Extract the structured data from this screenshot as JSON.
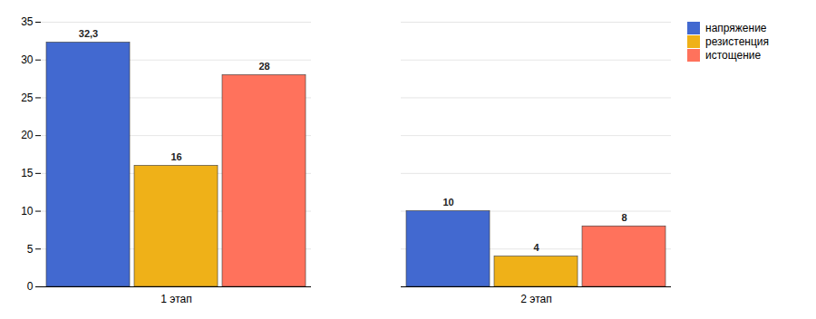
{
  "chart_data": {
    "type": "bar",
    "categories": [
      "1 этап",
      "2 этап"
    ],
    "series": [
      {
        "name": "напряжение",
        "values": [
          32.3,
          10
        ],
        "value_labels": [
          "32,3",
          "10"
        ]
      },
      {
        "name": "резистенция",
        "values": [
          16,
          4
        ],
        "value_labels": [
          "16",
          "4"
        ]
      },
      {
        "name": "истощение",
        "values": [
          28,
          8
        ],
        "value_labels": [
          "28",
          "8"
        ]
      }
    ],
    "ylim": [
      0,
      35
    ],
    "yticks": [
      0,
      5,
      10,
      15,
      20,
      25,
      30,
      35
    ],
    "grid": true,
    "data_labels": true,
    "legend": "right"
  }
}
